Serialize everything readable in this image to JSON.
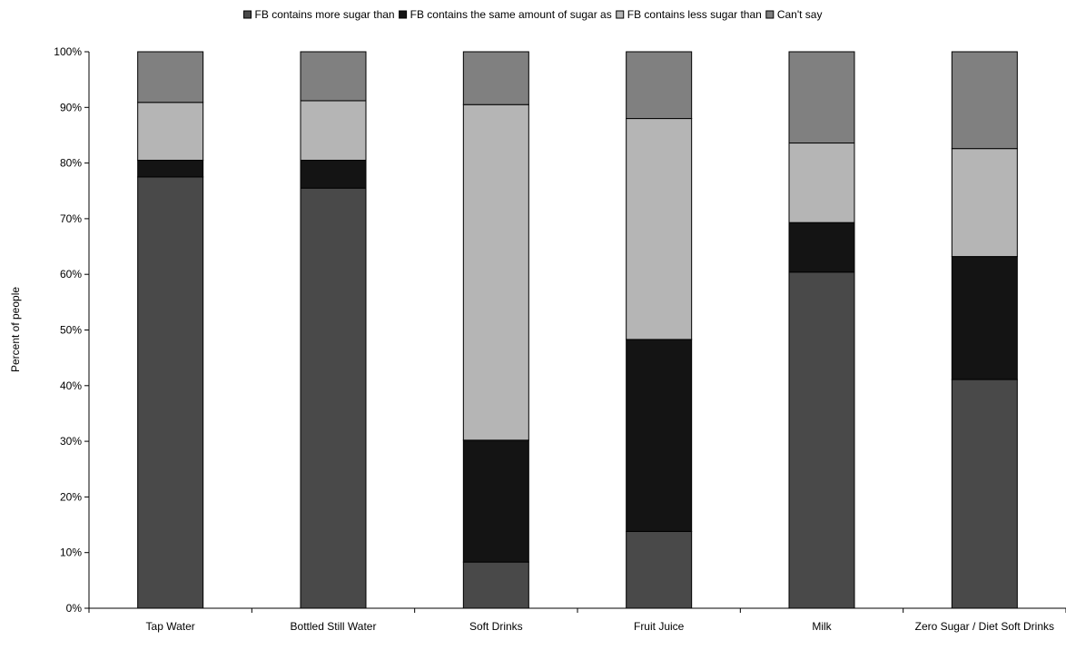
{
  "chart_data": {
    "type": "bar",
    "stacked": true,
    "normalized": true,
    "title": "",
    "xlabel": "",
    "ylabel": "Percent of people",
    "ylim": [
      0,
      100
    ],
    "yticks": [
      "0%",
      "10%",
      "20%",
      "30%",
      "40%",
      "50%",
      "60%",
      "70%",
      "80%",
      "90%",
      "100%"
    ],
    "grid": false,
    "legend_position": "top",
    "categories": [
      "Tap Water",
      "Bottled Still Water",
      "Soft Drinks",
      "Fruit Juice",
      "Milk",
      "Zero Sugar / Diet Soft Drinks"
    ],
    "series": [
      {
        "name": "FB contains more sugar than",
        "color": "#494949",
        "values": [
          77.5,
          75.5,
          8.3,
          13.8,
          60.4,
          41.1
        ]
      },
      {
        "name": "FB contains the same amount of sugar as",
        "color": "#141414",
        "values": [
          3.0,
          5.0,
          21.9,
          34.5,
          8.9,
          22.1
        ]
      },
      {
        "name": "FB contains less sugar than",
        "color": "#b5b5b5",
        "values": [
          10.4,
          10.7,
          60.3,
          39.7,
          14.3,
          19.4
        ]
      },
      {
        "name": "Can't say",
        "color": "#808080",
        "values": [
          9.1,
          8.8,
          9.5,
          12.0,
          16.4,
          17.4
        ]
      }
    ]
  }
}
